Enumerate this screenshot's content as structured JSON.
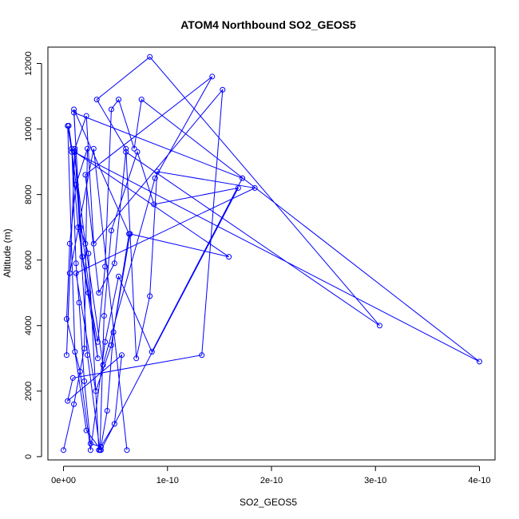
{
  "chart_data": {
    "type": "line",
    "title": "ATOM4 Northbound SO2_GEOS5",
    "xlabel": "SO2_GEOS5",
    "ylabel": "Altitude (m)",
    "xlim": [
      -1.5e-11,
      4.15e-10
    ],
    "ylim": [
      -100,
      12500
    ],
    "xticks": [
      0,
      1e-10,
      2e-10,
      3e-10,
      4e-10
    ],
    "xtick_labels": [
      "0e+00",
      "1e-10",
      "2e-10",
      "3e-10",
      "4e-10"
    ],
    "yticks": [
      0,
      2000,
      4000,
      6000,
      8000,
      10000,
      12000
    ],
    "ytick_labels": [
      "0",
      "2000",
      "4000",
      "6000",
      "8000",
      "10000",
      "12000"
    ],
    "grid": false,
    "legend": "none",
    "markers": "open-circle",
    "colors": {
      "series": "#0000ff",
      "axis": "#000000",
      "background": "#ffffff"
    },
    "series": [
      {
        "x": [
          0.0,
          1e-11,
          2e-11,
          2.3e-11,
          1.2e-11,
          6e-12,
          3e-12,
          1.6e-11,
          2.6e-11,
          4e-11,
          5.3e-11,
          8.5e-11,
          1.72e-10,
          1e-11,
          1.8e-11,
          3.3e-11,
          5e-12,
          8e-12,
          1.2e-11,
          1.5e-11,
          2e-11,
          2.6e-11,
          3.6e-11,
          4.2e-11,
          4.8e-11,
          6.4e-11,
          1.59e-10,
          1.1e-11,
          2.3e-11,
          3.5e-11,
          3.9e-11,
          4.6e-11,
          7.1e-11,
          8.7e-11,
          1.68e-10,
          3.6e-11,
          2.2e-11,
          1.1e-11,
          4e-12,
          8e-12,
          1.4e-11,
          2.4e-11,
          3.3e-11,
          4e-11,
          4.6e-11,
          5.3e-11,
          6.8e-11,
          7.5e-11,
          4e-10,
          1e-11,
          2.1e-11,
          3.8e-11,
          8.8e-11,
          1.43e-10,
          2.1e-11,
          3.4e-11,
          4.9e-11,
          6e-11,
          3.04e-10,
          8.3e-11,
          3.2e-11,
          6e-11,
          7e-11,
          8.3e-11,
          9e-11,
          1.84e-10,
          1.2e-11,
          3.1e-11,
          4.6e-11,
          6.3e-11,
          1e-11,
          1.6e-11,
          2.4e-11,
          3.4e-11,
          4.9e-11,
          5.6e-11,
          4e-12,
          9e-12,
          1.33e-10,
          1.53e-10,
          2.9e-11,
          2.2e-11,
          1.1e-11,
          3e-12,
          6e-12,
          2.9e-11,
          6.1e-11
        ],
        "y": [
          200,
          1600,
          3300,
          9400,
          8300,
          6500,
          4200,
          2600,
          200,
          3500,
          5500,
          3200,
          8500,
          10500,
          6100,
          3000,
          10100,
          9400,
          5900,
          4700,
          2300,
          400,
          300,
          1400,
          3800,
          6800,
          6100,
          9300,
          3100,
          200,
          4300,
          6900,
          9300,
          7700,
          8200,
          200,
          800,
          3200,
          10100,
          9300,
          7000,
          5000,
          3500,
          5800,
          10600,
          10900,
          9400,
          10900,
          2900,
          9300,
          6500,
          2800,
          8500,
          11600,
          8600,
          5000,
          5900,
          9300,
          4000,
          12200,
          10900,
          9400,
          3000,
          4900,
          8700,
          8200,
          5600,
          2000,
          3400,
          6800,
          10600,
          7000,
          6200,
          200,
          1000,
          3100,
          1700,
          2400,
          3100,
          11200,
          6500,
          10400,
          9400,
          3100,
          5600,
          9400,
          200
        ]
      }
    ]
  }
}
